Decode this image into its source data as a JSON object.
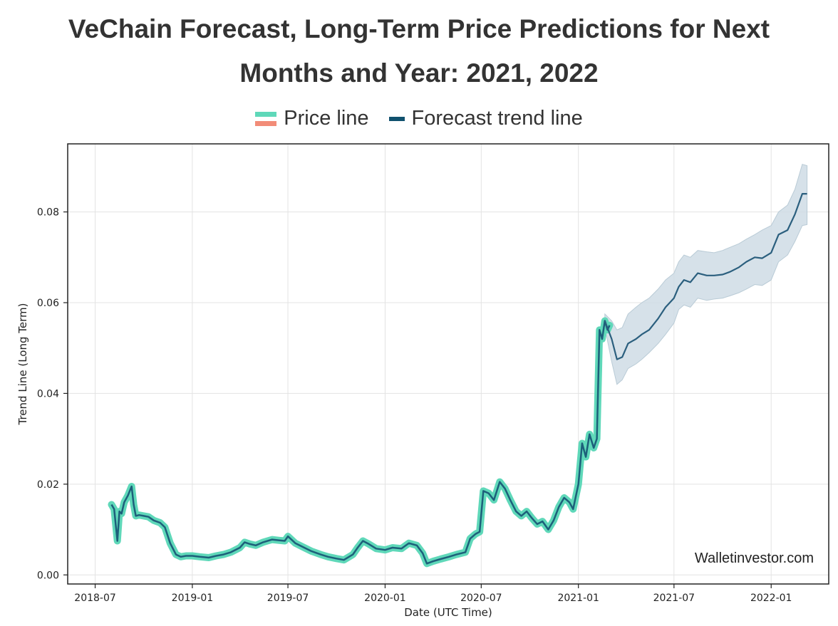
{
  "title_line1": "VeChain Forecast, Long-Term Price Predictions for Next",
  "title_line2": "Months and Year: 2021, 2022",
  "legend": [
    {
      "label": "Price line",
      "colors": [
        "#5fd8b9",
        "#f28c78"
      ]
    },
    {
      "label": "Forecast trend line",
      "color": "#10516e"
    }
  ],
  "watermark": "Walletinvestor.com",
  "chart_data": {
    "type": "line",
    "title": "VeChain Forecast, Long-Term Price Predictions for Next Months and Year: 2021, 2022",
    "xlabel": "Date (UTC Time)",
    "ylabel": "Trend Line (Long Term)",
    "ylim": [
      -0.002,
      0.095
    ],
    "xlim": [
      "2018-05-10",
      "2022-04-20"
    ],
    "grid": true,
    "legend_position": "top-center",
    "x_ticks": [
      "2018-07",
      "2019-01",
      "2019-07",
      "2020-01",
      "2020-07",
      "2021-01",
      "2021-07",
      "2022-01"
    ],
    "y_ticks": [
      "0.00",
      "0.02",
      "0.04",
      "0.06",
      "0.08"
    ],
    "colors": {
      "price_glow": "#5fd8b9",
      "price_line": "#1d5f7a",
      "forecast": "#2b5f7e",
      "band": "#cfdce5",
      "grid": "#e3e3e3"
    },
    "series": [
      {
        "name": "Price line",
        "x": [
          "2018-08-01",
          "2018-08-06",
          "2018-08-12",
          "2018-08-16",
          "2018-08-20",
          "2018-08-25",
          "2018-09-01",
          "2018-09-08",
          "2018-09-12",
          "2018-09-16",
          "2018-09-22",
          "2018-10-01",
          "2018-10-10",
          "2018-10-20",
          "2018-11-01",
          "2018-11-10",
          "2018-11-20",
          "2018-12-01",
          "2018-12-10",
          "2018-12-20",
          "2019-01-01",
          "2019-01-15",
          "2019-02-01",
          "2019-02-15",
          "2019-03-01",
          "2019-03-15",
          "2019-04-01",
          "2019-04-10",
          "2019-04-20",
          "2019-05-01",
          "2019-05-15",
          "2019-06-01",
          "2019-06-15",
          "2019-06-25",
          "2019-07-01",
          "2019-07-15",
          "2019-08-01",
          "2019-08-15",
          "2019-09-01",
          "2019-09-15",
          "2019-10-01",
          "2019-10-15",
          "2019-11-01",
          "2019-11-10",
          "2019-11-20",
          "2019-12-01",
          "2019-12-15",
          "2020-01-01",
          "2020-01-15",
          "2020-02-01",
          "2020-02-15",
          "2020-03-01",
          "2020-03-12",
          "2020-03-20",
          "2020-04-01",
          "2020-04-15",
          "2020-05-01",
          "2020-05-15",
          "2020-06-01",
          "2020-06-10",
          "2020-06-20",
          "2020-06-28",
          "2020-07-05",
          "2020-07-15",
          "2020-07-25",
          "2020-08-05",
          "2020-08-15",
          "2020-08-25",
          "2020-09-05",
          "2020-09-15",
          "2020-09-25",
          "2020-10-05",
          "2020-10-15",
          "2020-10-25",
          "2020-11-05",
          "2020-11-15",
          "2020-11-25",
          "2020-12-05",
          "2020-12-15",
          "2020-12-22",
          "2021-01-01",
          "2021-01-08",
          "2021-01-15",
          "2021-01-22",
          "2021-01-30",
          "2021-02-05",
          "2021-02-10",
          "2021-02-15",
          "2021-02-20",
          "2021-02-25",
          "2021-03-01"
        ],
        "y": [
          0.0155,
          0.0145,
          0.0075,
          0.014,
          0.0135,
          0.016,
          0.0175,
          0.0195,
          0.0155,
          0.013,
          0.0132,
          0.013,
          0.0128,
          0.012,
          0.0115,
          0.0105,
          0.007,
          0.0045,
          0.004,
          0.0042,
          0.0042,
          0.004,
          0.0038,
          0.0042,
          0.0045,
          0.005,
          0.006,
          0.0072,
          0.0068,
          0.0065,
          0.0072,
          0.0078,
          0.0076,
          0.0075,
          0.0085,
          0.007,
          0.006,
          0.0052,
          0.0045,
          0.004,
          0.0036,
          0.0033,
          0.0045,
          0.006,
          0.0075,
          0.0068,
          0.0058,
          0.0055,
          0.006,
          0.0058,
          0.007,
          0.0065,
          0.0048,
          0.0025,
          0.003,
          0.0035,
          0.004,
          0.0045,
          0.005,
          0.008,
          0.009,
          0.0095,
          0.0185,
          0.018,
          0.0165,
          0.0205,
          0.019,
          0.0165,
          0.014,
          0.013,
          0.014,
          0.0125,
          0.0112,
          0.0118,
          0.01,
          0.012,
          0.015,
          0.017,
          0.016,
          0.0145,
          0.02,
          0.029,
          0.026,
          0.031,
          0.028,
          0.03,
          0.054,
          0.052,
          0.056,
          0.054,
          0.055
        ]
      },
      {
        "name": "Forecast trend line",
        "x": [
          "2021-02-20",
          "2021-03-05",
          "2021-03-15",
          "2021-03-25",
          "2021-04-05",
          "2021-04-20",
          "2021-05-01",
          "2021-05-15",
          "2021-06-01",
          "2021-06-15",
          "2021-07-01",
          "2021-07-10",
          "2021-07-20",
          "2021-08-01",
          "2021-08-15",
          "2021-09-01",
          "2021-09-15",
          "2021-10-01",
          "2021-10-15",
          "2021-11-01",
          "2021-11-15",
          "2021-12-01",
          "2021-12-15",
          "2022-01-01",
          "2022-01-15",
          "2022-02-01",
          "2022-02-15",
          "2022-03-01",
          "2022-03-10"
        ],
        "y": [
          0.056,
          0.052,
          0.0475,
          0.048,
          0.051,
          0.052,
          0.053,
          0.054,
          0.0565,
          0.059,
          0.061,
          0.0635,
          0.065,
          0.0645,
          0.0665,
          0.066,
          0.066,
          0.0662,
          0.0668,
          0.0678,
          0.069,
          0.07,
          0.0698,
          0.071,
          0.075,
          0.076,
          0.0795,
          0.084,
          0.084
        ]
      },
      {
        "name": "Forecast band upper",
        "x": [
          "2021-02-20",
          "2021-03-05",
          "2021-03-15",
          "2021-03-25",
          "2021-04-05",
          "2021-04-20",
          "2021-05-01",
          "2021-05-15",
          "2021-06-01",
          "2021-06-15",
          "2021-07-01",
          "2021-07-10",
          "2021-07-20",
          "2021-08-01",
          "2021-08-15",
          "2021-09-01",
          "2021-09-15",
          "2021-10-01",
          "2021-10-15",
          "2021-11-01",
          "2021-11-15",
          "2021-12-01",
          "2021-12-15",
          "2022-01-01",
          "2022-01-15",
          "2022-02-01",
          "2022-02-15",
          "2022-03-01",
          "2022-03-10"
        ],
        "y": [
          0.0575,
          0.056,
          0.054,
          0.0545,
          0.0575,
          0.059,
          0.06,
          0.061,
          0.063,
          0.065,
          0.0665,
          0.069,
          0.0705,
          0.07,
          0.0715,
          0.0712,
          0.071,
          0.0715,
          0.0722,
          0.073,
          0.074,
          0.075,
          0.076,
          0.077,
          0.08,
          0.0815,
          0.085,
          0.0905,
          0.0902
        ]
      },
      {
        "name": "Forecast band lower",
        "x": [
          "2021-02-20",
          "2021-03-05",
          "2021-03-15",
          "2021-03-25",
          "2021-04-05",
          "2021-04-20",
          "2021-05-01",
          "2021-05-15",
          "2021-06-01",
          "2021-06-15",
          "2021-07-01",
          "2021-07-10",
          "2021-07-20",
          "2021-08-01",
          "2021-08-15",
          "2021-09-01",
          "2021-09-15",
          "2021-10-01",
          "2021-10-15",
          "2021-11-01",
          "2021-11-15",
          "2021-12-01",
          "2021-12-15",
          "2022-01-01",
          "2022-01-15",
          "2022-02-01",
          "2022-02-15",
          "2022-03-01",
          "2022-03-10"
        ],
        "y": [
          0.0545,
          0.047,
          0.042,
          0.043,
          0.0455,
          0.0465,
          0.0475,
          0.049,
          0.051,
          0.053,
          0.0555,
          0.0585,
          0.0595,
          0.059,
          0.061,
          0.0605,
          0.0608,
          0.061,
          0.0615,
          0.0622,
          0.063,
          0.064,
          0.0638,
          0.065,
          0.069,
          0.0705,
          0.0735,
          0.077,
          0.0772
        ]
      }
    ]
  }
}
